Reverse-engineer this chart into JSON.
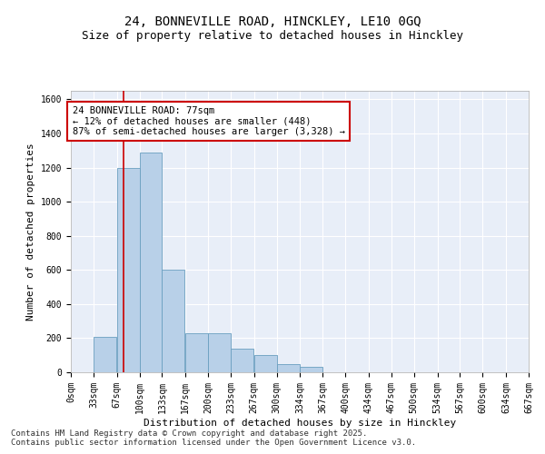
{
  "title_line1": "24, BONNEVILLE ROAD, HINCKLEY, LE10 0GQ",
  "title_line2": "Size of property relative to detached houses in Hinckley",
  "xlabel": "Distribution of detached houses by size in Hinckley",
  "ylabel": "Number of detached properties",
  "bin_labels": [
    "0sqm",
    "33sqm",
    "67sqm",
    "100sqm",
    "133sqm",
    "167sqm",
    "200sqm",
    "233sqm",
    "267sqm",
    "300sqm",
    "334sqm",
    "367sqm",
    "400sqm",
    "434sqm",
    "467sqm",
    "500sqm",
    "534sqm",
    "567sqm",
    "600sqm",
    "634sqm",
    "667sqm"
  ],
  "bin_left_edges": [
    0,
    33,
    67,
    100,
    133,
    167,
    200,
    233,
    267,
    300,
    334,
    367,
    400,
    434,
    467,
    500,
    534,
    567,
    600,
    634,
    667
  ],
  "bar_values": [
    0,
    210,
    1200,
    1290,
    600,
    230,
    230,
    140,
    100,
    50,
    30,
    0,
    0,
    0,
    0,
    0,
    0,
    0,
    0,
    0,
    0
  ],
  "bar_color": "#b8d0e8",
  "bar_edge_color": "#6a9fc0",
  "property_size": 77,
  "red_line_color": "#cc0000",
  "annotation_line1": "24 BONNEVILLE ROAD: 77sqm",
  "annotation_line2": "← 12% of detached houses are smaller (448)",
  "annotation_line3": "87% of semi-detached houses are larger (3,328) →",
  "annotation_box_color": "#ffffff",
  "annotation_box_edge": "#cc0000",
  "ylim": [
    0,
    1650
  ],
  "yticks": [
    0,
    200,
    400,
    600,
    800,
    1000,
    1200,
    1400,
    1600
  ],
  "background_color": "#e8eef8",
  "grid_color": "#ffffff",
  "footer_line1": "Contains HM Land Registry data © Crown copyright and database right 2025.",
  "footer_line2": "Contains public sector information licensed under the Open Government Licence v3.0.",
  "title_fontsize": 10,
  "subtitle_fontsize": 9,
  "axis_label_fontsize": 8,
  "tick_fontsize": 7,
  "annotation_fontsize": 7.5,
  "footer_fontsize": 6.5
}
